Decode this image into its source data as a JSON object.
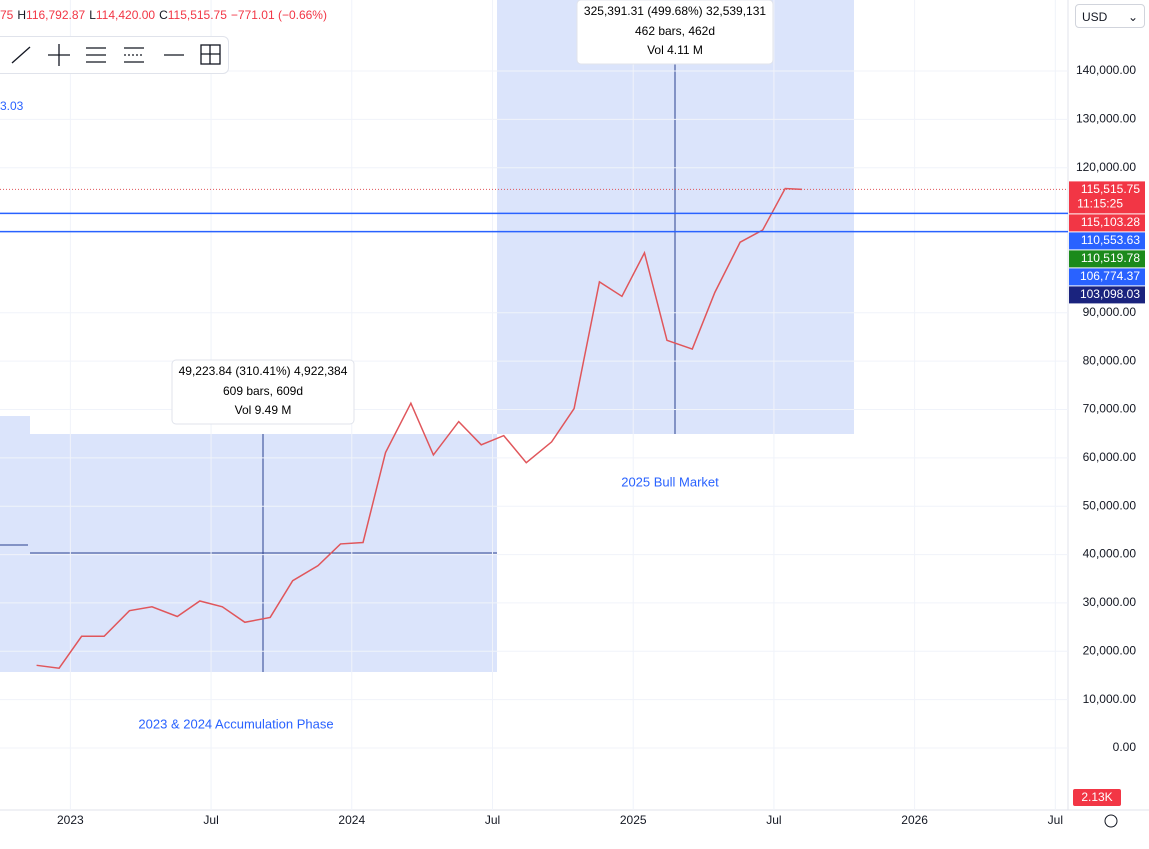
{
  "header": {
    "parts": [
      "75",
      "H",
      "116,792.87",
      "L",
      "114,420.00",
      "C",
      "115,515.75",
      "−771.01 (−0.66%)"
    ]
  },
  "side_value": "3.03",
  "currency": "USD",
  "measure_boxes": [
    {
      "lines": [
        "325,391.31 (499.68%) 32,539,131",
        "462 bars, 462d",
        "Vol 4.11 M"
      ]
    },
    {
      "lines": [
        "49,223.84 (310.41%) 4,922,384",
        "609 bars, 609d",
        "Vol 9.49 M"
      ]
    }
  ],
  "phase_labels": [
    "2025 Bull Market",
    "2023 & 2024 Accumulation Phase"
  ],
  "volume_label": "2.13K",
  "chart_data": {
    "type": "line",
    "color": "#e0565b",
    "x": [
      2022.88,
      2022.96,
      2023.04,
      2023.12,
      2023.21,
      2023.29,
      2023.38,
      2023.46,
      2023.54,
      2023.62,
      2023.71,
      2023.79,
      2023.88,
      2023.96,
      2024.04,
      2024.12,
      2024.21,
      2024.29,
      2024.38,
      2024.46,
      2024.54,
      2024.62,
      2024.71,
      2024.79,
      2024.88,
      2024.96,
      2025.04,
      2025.12,
      2025.21,
      2025.29,
      2025.38,
      2025.46,
      2025.54,
      2025.6
    ],
    "values": [
      17100,
      16500,
      23100,
      23100,
      28400,
      29200,
      27200,
      30400,
      29200,
      26000,
      27000,
      34600,
      37700,
      42200,
      42500,
      61100,
      71300,
      60600,
      67500,
      62700,
      64600,
      59000,
      63300,
      70200,
      96400,
      93400,
      102400,
      84300,
      82500,
      94200,
      104600,
      107100,
      115700,
      115515.75
    ],
    "xlim": [
      2022.75,
      2026.545
    ],
    "xticks": [
      {
        "value": 2023,
        "label": "2023"
      },
      {
        "value": 2023.5,
        "label": "Jul"
      },
      {
        "value": 2024,
        "label": "2024"
      },
      {
        "value": 2024.5,
        "label": "Jul"
      },
      {
        "value": 2025,
        "label": "2025"
      },
      {
        "value": 2025.5,
        "label": "Jul"
      },
      {
        "value": 2026,
        "label": "2026"
      },
      {
        "value": 2026.5,
        "label": "Jul"
      }
    ],
    "ylim": [
      -12820,
      154682
    ],
    "yticks": [
      {
        "value": 140000,
        "label": "140,000.00"
      },
      {
        "value": 130000,
        "label": "130,000.00"
      },
      {
        "value": 120000,
        "label": "120,000.00"
      },
      {
        "value": 90000,
        "label": "90,000.00"
      },
      {
        "value": 80000,
        "label": "80,000.00"
      },
      {
        "value": 70000,
        "label": "70,000.00"
      },
      {
        "value": 60000,
        "label": "60,000.00"
      },
      {
        "value": 50000,
        "label": "50,000.00"
      },
      {
        "value": 40000,
        "label": "40,000.00"
      },
      {
        "value": 30000,
        "label": "30,000.00"
      },
      {
        "value": 20000,
        "label": "20,000.00"
      },
      {
        "value": 10000,
        "label": "10,000.00"
      },
      {
        "value": 0,
        "label": "0.00"
      }
    ],
    "price_labels": [
      {
        "value": 115515.75,
        "label": "115,515.75",
        "sub": "11:15:25",
        "color": "#f23645"
      },
      {
        "value": 115103.28,
        "label": "115,103.28",
        "color": "#f23645"
      },
      {
        "value": 110553.63,
        "label": "110,553.63",
        "color": "#2962ff"
      },
      {
        "value": 110519.78,
        "label": "110,519.78",
        "color": "#1b8a1b"
      },
      {
        "value": 106774.37,
        "label": "106,774.37",
        "color": "#2962ff"
      },
      {
        "value": 103098.03,
        "label": "103,098.03",
        "color": "#1a237e"
      }
    ],
    "hlines": [
      110553.63,
      106774.37
    ],
    "hline_color": "#2962ff"
  }
}
